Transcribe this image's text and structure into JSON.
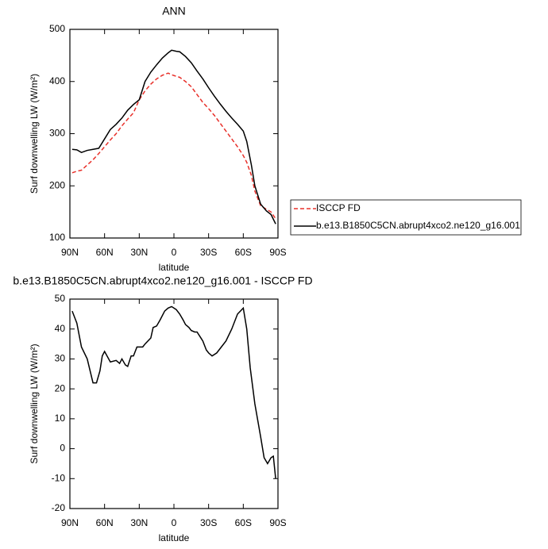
{
  "chart_data": [
    {
      "type": "line",
      "title": "ANN",
      "xlabel": "latitude",
      "ylabel": "Surf downwelling LW (W/m²)",
      "x": [
        88,
        84,
        80,
        75,
        70,
        65,
        60,
        55,
        50,
        45,
        40,
        35,
        30,
        25,
        20,
        15,
        10,
        5,
        2,
        -2,
        -5,
        -10,
        -15,
        -20,
        -25,
        -30,
        -35,
        -40,
        -45,
        -50,
        -55,
        -60,
        -63,
        -67,
        -70,
        -75,
        -80,
        -84,
        -88
      ],
      "series": [
        {
          "name": "ISCCP FD",
          "color": "#e8302a",
          "linestyle": "dashed",
          "values": [
            225,
            228,
            230,
            240,
            250,
            262,
            275,
            288,
            300,
            315,
            328,
            340,
            365,
            382,
            395,
            405,
            412,
            416,
            413,
            410,
            408,
            400,
            390,
            375,
            360,
            348,
            335,
            320,
            305,
            290,
            275,
            258,
            245,
            220,
            190,
            162,
            155,
            150,
            137
          ]
        },
        {
          "name": "b.e13.B1850C5CN.abrupt4xco2.ne120_g16.001",
          "color": "#000000",
          "linestyle": "solid",
          "values": [
            270,
            269,
            264,
            268,
            270,
            272,
            290,
            308,
            318,
            330,
            345,
            356,
            365,
            400,
            418,
            432,
            445,
            455,
            460,
            458,
            457,
            448,
            436,
            420,
            405,
            388,
            372,
            357,
            343,
            330,
            318,
            305,
            285,
            240,
            200,
            165,
            152,
            145,
            127
          ]
        }
      ],
      "xlim": [
        90,
        -90
      ],
      "xticks": [
        {
          "value": 90,
          "label": "90N"
        },
        {
          "value": 60,
          "label": "60N"
        },
        {
          "value": 30,
          "label": "30N"
        },
        0,
        {
          "value": -30,
          "label": "30S"
        },
        {
          "value": -60,
          "label": "60S"
        },
        {
          "value": -90,
          "label": "90S"
        }
      ],
      "ylim": [
        100,
        500
      ],
      "yticks": [
        100,
        200,
        300,
        400,
        500
      ],
      "legend": "right"
    },
    {
      "type": "line",
      "title": "b.e13.B1850C5CN.abrupt4xco2.ne120_g16.001 - ISCCP FD",
      "xlabel": "latitude",
      "ylabel": "Surf downwelling LW (W/m²)",
      "x": [
        88,
        84,
        80,
        75,
        70,
        67,
        64,
        62,
        60,
        55,
        50,
        47,
        45,
        42,
        40,
        37,
        35,
        32,
        27,
        25,
        20,
        18,
        15,
        12,
        8,
        5,
        2,
        -2,
        -5,
        -8,
        -10,
        -13,
        -15,
        -18,
        -20,
        -25,
        -28,
        -30,
        -33,
        -37,
        -40,
        -45,
        -50,
        -55,
        -60,
        -63,
        -66,
        -70,
        -75,
        -78,
        -81,
        -84,
        -86,
        -88
      ],
      "series": [
        {
          "color": "#000000",
          "linestyle": "solid",
          "values": [
            46,
            42,
            34,
            30,
            22,
            22,
            26,
            31,
            32.5,
            29,
            29.5,
            28.5,
            30,
            28,
            27.5,
            31,
            31,
            34,
            34,
            35,
            37,
            40.5,
            41,
            43,
            46,
            47,
            47.5,
            46.5,
            45,
            43,
            41.5,
            40.5,
            39.5,
            39,
            39,
            36,
            33,
            32,
            31,
            32,
            33.5,
            36,
            40,
            45,
            47,
            40,
            27,
            15,
            4,
            -3,
            -5,
            -3,
            -2.5,
            -10
          ]
        }
      ],
      "xlim": [
        90,
        -90
      ],
      "xticks": [
        {
          "value": 90,
          "label": "90N"
        },
        {
          "value": 60,
          "label": "60N"
        },
        {
          "value": 30,
          "label": "30N"
        },
        0,
        {
          "value": -30,
          "label": "30S"
        },
        {
          "value": -60,
          "label": "60S"
        },
        {
          "value": -90,
          "label": "90S"
        }
      ],
      "ylim": [
        -20,
        50
      ],
      "yticks": [
        -20,
        -10,
        0,
        10,
        20,
        30,
        40,
        50
      ]
    }
  ]
}
